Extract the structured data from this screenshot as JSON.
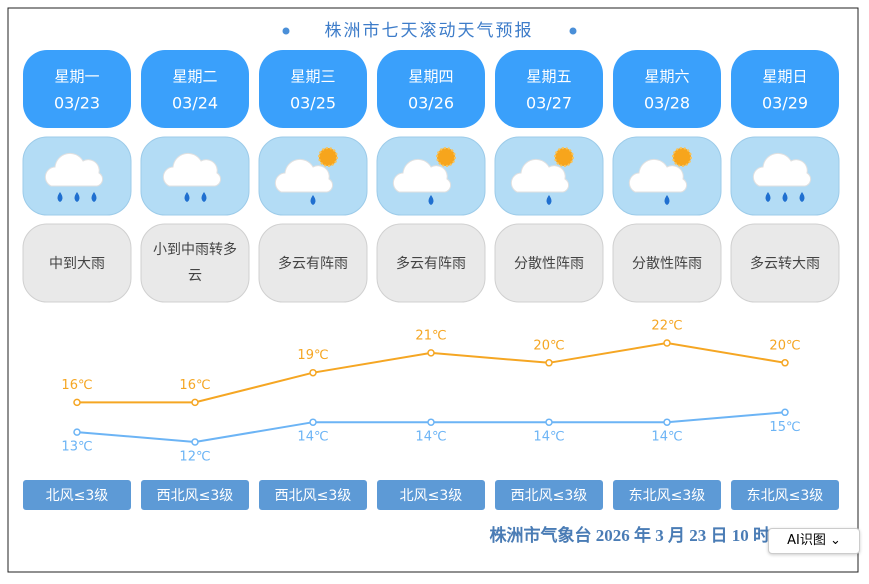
{
  "title": "株洲市七天滚动天气预报",
  "days": [
    {
      "weekday": "星期一",
      "date": "03/23",
      "weather": "中到大雨",
      "wind": "北风≤3级"
    },
    {
      "weekday": "星期二",
      "date": "03/24",
      "weather": "小到中雨转多云",
      "wind": "西北风≤3级"
    },
    {
      "weekday": "星期三",
      "date": "03/25",
      "weather": "多云有阵雨",
      "wind": "西北风≤3级"
    },
    {
      "weekday": "星期四",
      "date": "03/26",
      "weather": "多云有阵雨",
      "wind": "北风≤3级"
    },
    {
      "weekday": "星期五",
      "date": "03/27",
      "weather": "分散性阵雨",
      "wind": "西北风≤3级"
    },
    {
      "weekday": "星期六",
      "date": "03/28",
      "weather": "分散性阵雨",
      "wind": "东北风≤3级"
    },
    {
      "weekday": "星期日",
      "date": "03/29",
      "weather": "多云转大雨",
      "wind": "东北风≤3级"
    }
  ],
  "chart_data": {
    "type": "line",
    "series": [
      {
        "color": "#f5a623",
        "values": [
          16,
          16,
          19,
          21,
          20,
          22,
          20
        ],
        "value_labels": [
          "16℃",
          "16℃",
          "19℃",
          "21℃",
          "20℃",
          "22℃",
          "20℃"
        ]
      },
      {
        "color": "#6cb4f5",
        "values": [
          13,
          12,
          14,
          14,
          14,
          14,
          15
        ],
        "value_labels": [
          "13℃",
          "12℃",
          "14℃",
          "14℃",
          "14℃",
          "14℃",
          "15℃"
        ]
      }
    ]
  },
  "footer": "株洲市气象台 2026 年 3 月 23 日 10 时",
  "button": "AI识图"
}
